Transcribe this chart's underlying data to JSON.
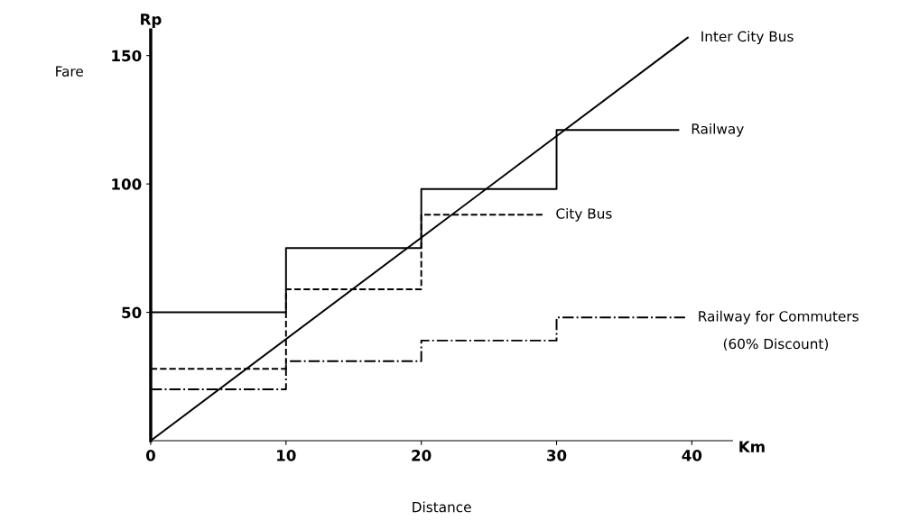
{
  "chart_data": {
    "type": "step",
    "xlabel": "Distance",
    "ylabel": "Fare",
    "xlim": [
      0,
      43
    ],
    "ylim": [
      0,
      160
    ],
    "xticks": [
      0,
      10,
      20,
      30,
      40
    ],
    "yticks": [
      50,
      100,
      150
    ],
    "grid": false,
    "legend": false,
    "series": [
      {
        "name": "Inter City Bus",
        "type": "line",
        "color": "#000000",
        "line_style": "solid",
        "x": [
          0,
          39.7
        ],
        "values": [
          0,
          157
        ]
      },
      {
        "name": "Railway",
        "color": "#000000",
        "line_style": "solid",
        "x": [
          0,
          10,
          20,
          30,
          39
        ],
        "values": [
          50,
          75,
          98,
          121,
          121
        ]
      },
      {
        "name": "City Bus",
        "color": "#000000",
        "line_style": "dashed",
        "x": [
          0,
          10,
          20,
          29
        ],
        "values": [
          28,
          59,
          88,
          88
        ]
      },
      {
        "name": "Railway for Commuters",
        "color": "#000000",
        "line_style": "dashdot",
        "x": [
          0,
          10,
          20,
          30,
          39.5
        ],
        "values": [
          20,
          31,
          39,
          48,
          48
        ]
      }
    ],
    "annotations": [
      "Rp",
      "Km",
      "(60% Discount)"
    ]
  }
}
